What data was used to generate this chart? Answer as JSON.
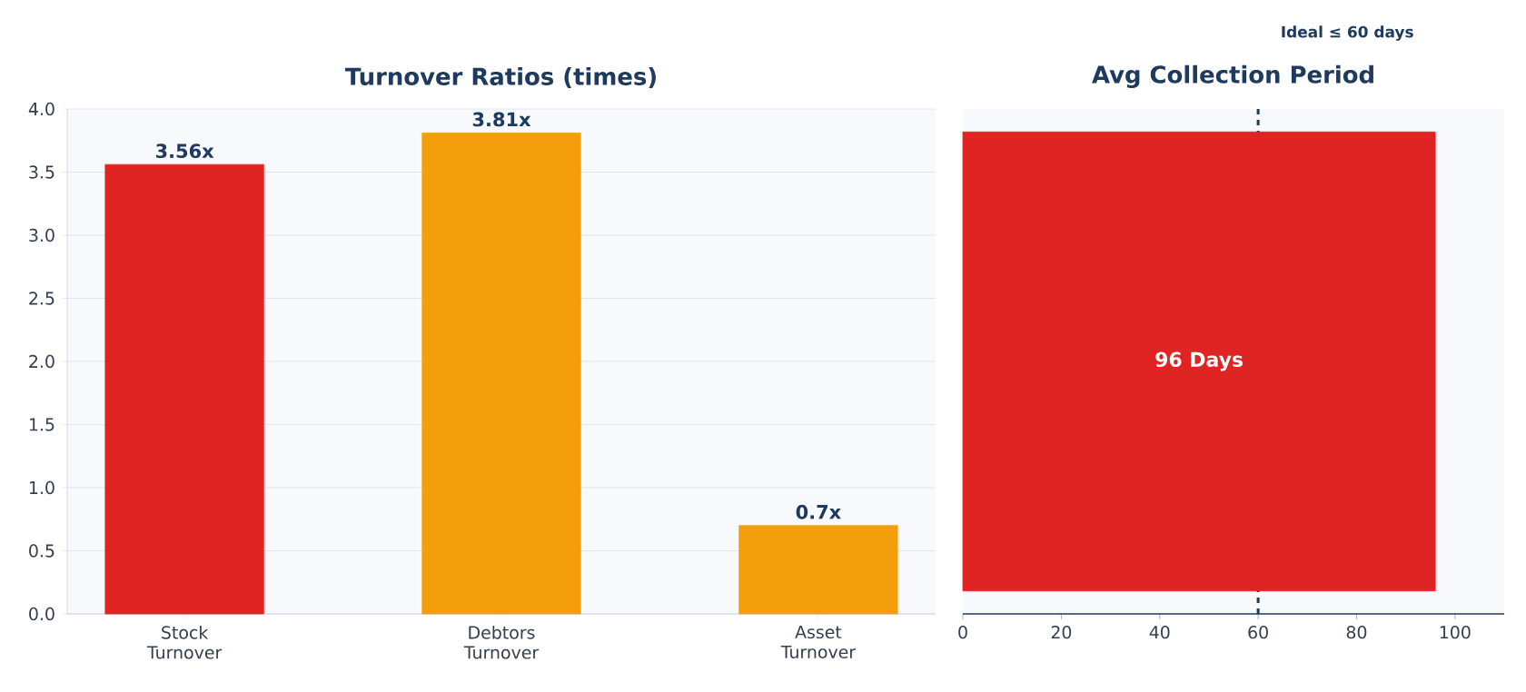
{
  "chart_data": [
    {
      "type": "bar",
      "title": "Turnover Ratios (times)",
      "categories": [
        "Stock Turnover",
        "Debtors Turnover",
        "Asset Turnover"
      ],
      "values": [
        3.56,
        3.81,
        0.7
      ],
      "colors": [
        "#e02424",
        "#f59e0b",
        "#f59e0b"
      ],
      "value_labels": [
        "3.56x",
        "3.81x",
        "0.7x"
      ],
      "ylim": [
        0,
        4
      ],
      "yticks": [
        {
          "value": 0,
          "label": "0.0"
        },
        0.5,
        {
          "value": 1,
          "label": "1.0"
        },
        1.5,
        {
          "value": 2,
          "label": "2.0"
        },
        2.5,
        {
          "value": 3,
          "label": "3.0"
        },
        3.5,
        {
          "value": 4,
          "label": "4.0"
        }
      ],
      "grid": "y"
    },
    {
      "type": "bar",
      "orientation": "horizontal",
      "title": "Avg Collection Period",
      "categories": [
        null
      ],
      "values": [
        96
      ],
      "colors": [
        "#e02424"
      ],
      "value_labels": [
        "96 Days"
      ],
      "xlim": [
        0,
        110
      ],
      "xticks": [
        0,
        20,
        40,
        60,
        80,
        100
      ],
      "tick_labels": "x",
      "ref_lines": [
        {
          "axis": "x",
          "value": 60,
          "label": "Ideal ≤ 60 days",
          "color": "#1e3a5f",
          "line_style": "dashed"
        }
      ]
    }
  ]
}
